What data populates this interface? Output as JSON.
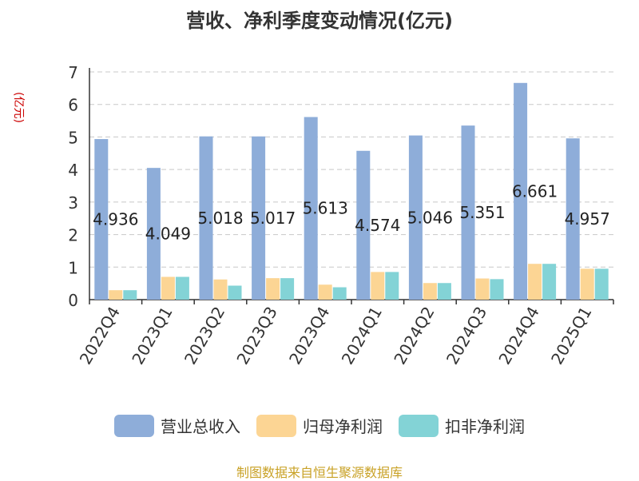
{
  "title": "营收、净利季度变动情况(亿元)",
  "unit_label": "(亿元)",
  "source": "制图数据来自恒生聚源数据库",
  "chart_data": {
    "type": "bar",
    "categories": [
      "2022Q4",
      "2023Q1",
      "2023Q2",
      "2023Q3",
      "2023Q4",
      "2024Q1",
      "2024Q2",
      "2024Q3",
      "2024Q4",
      "2025Q1"
    ],
    "series": [
      {
        "name": "营业总收入",
        "color": "#8eadd9",
        "values": [
          4.936,
          4.049,
          5.018,
          5.017,
          5.613,
          4.574,
          5.046,
          5.351,
          6.661,
          4.957
        ]
      },
      {
        "name": "归母净利润",
        "color": "#fcd594",
        "values": [
          0.29,
          0.7,
          0.62,
          0.66,
          0.46,
          0.85,
          0.51,
          0.65,
          1.1,
          0.95
        ]
      },
      {
        "name": "扣非净利润",
        "color": "#83d3d6",
        "values": [
          0.29,
          0.7,
          0.43,
          0.66,
          0.38,
          0.85,
          0.51,
          0.63,
          1.1,
          0.95
        ]
      }
    ],
    "data_labels": [
      "4.936",
      "4.049",
      "5.018",
      "5.017",
      "5.613",
      "4.574",
      "5.046",
      "5.351",
      "6.661",
      "4.957"
    ],
    "ylim": [
      0,
      7
    ],
    "yticks": [
      0,
      1,
      2,
      3,
      4,
      5,
      6,
      7
    ],
    "grid": true,
    "legend_position": "bottom"
  }
}
